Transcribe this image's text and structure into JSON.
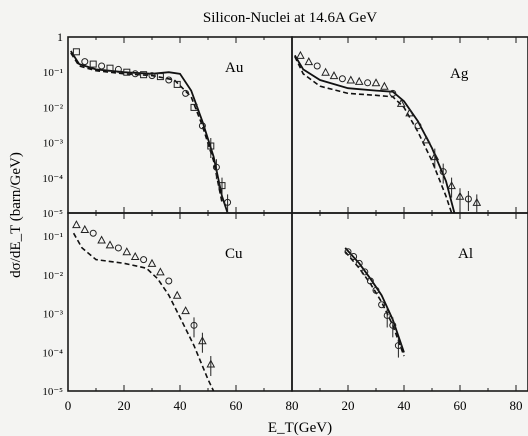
{
  "title": "Silicon-Nuclei at  14.6A GeV",
  "ylabel": "dσ/dE_T (barn/GeV)",
  "xlabel": "E_T(GeV)",
  "x_ticks_left": [
    "0",
    "20",
    "40",
    "60",
    "80"
  ],
  "x_ticks_right": [
    "20",
    "40",
    "60",
    "80"
  ],
  "y_ticks_top": [
    "1",
    "10⁻¹",
    "10⁻²",
    "10⁻³",
    "10⁻⁴",
    "10⁻⁵"
  ],
  "y_ticks_bottom": [
    "10⁻¹",
    "10⁻²",
    "10⁻³",
    "10⁻⁴",
    "10⁻⁵"
  ],
  "chart_data": [
    {
      "panel": "Au",
      "type": "scatter",
      "xlim": [
        0,
        80
      ],
      "ylim": [
        1e-05,
        1
      ],
      "yscale": "log",
      "markers": "squares and circles",
      "points": [
        [
          3,
          0.38
        ],
        [
          6,
          0.2
        ],
        [
          9,
          0.17
        ],
        [
          12,
          0.15
        ],
        [
          15,
          0.13
        ],
        [
          18,
          0.12
        ],
        [
          21,
          0.1
        ],
        [
          24,
          0.09
        ],
        [
          27,
          0.085
        ],
        [
          30,
          0.08
        ],
        [
          33,
          0.075
        ],
        [
          36,
          0.06
        ],
        [
          39,
          0.045
        ],
        [
          42,
          0.025
        ],
        [
          45,
          0.01
        ],
        [
          48,
          0.003
        ],
        [
          51,
          0.0008
        ],
        [
          53,
          0.0002
        ],
        [
          55,
          6e-05
        ],
        [
          57,
          2e-05
        ]
      ],
      "solid": [
        [
          1,
          0.4
        ],
        [
          4,
          0.17
        ],
        [
          10,
          0.12
        ],
        [
          20,
          0.1
        ],
        [
          30,
          0.09
        ],
        [
          36,
          0.1
        ],
        [
          40,
          0.09
        ],
        [
          44,
          0.03
        ],
        [
          48,
          0.004
        ],
        [
          52,
          0.0004
        ],
        [
          55,
          3e-05
        ],
        [
          57,
          1e-05
        ]
      ],
      "dashed": [
        [
          1,
          0.35
        ],
        [
          4,
          0.15
        ],
        [
          10,
          0.11
        ],
        [
          20,
          0.09
        ],
        [
          30,
          0.08
        ],
        [
          38,
          0.06
        ],
        [
          44,
          0.02
        ],
        [
          48,
          0.003
        ],
        [
          52,
          0.0003
        ],
        [
          55,
          2e-05
        ]
      ]
    },
    {
      "panel": "Ag",
      "type": "scatter",
      "xlim": [
        0,
        80
      ],
      "ylim": [
        1e-05,
        1
      ],
      "yscale": "log",
      "markers": "triangles and circles",
      "points": [
        [
          3,
          0.3
        ],
        [
          6,
          0.2
        ],
        [
          9,
          0.15
        ],
        [
          12,
          0.1
        ],
        [
          15,
          0.08
        ],
        [
          18,
          0.065
        ],
        [
          21,
          0.06
        ],
        [
          24,
          0.055
        ],
        [
          27,
          0.05
        ],
        [
          30,
          0.05
        ],
        [
          33,
          0.04
        ],
        [
          36,
          0.025
        ],
        [
          39,
          0.013
        ],
        [
          42,
          0.007
        ],
        [
          45,
          0.003
        ],
        [
          48,
          0.0012
        ],
        [
          51,
          0.0004
        ],
        [
          54,
          0.00015
        ],
        [
          57,
          6e-05
        ],
        [
          60,
          3e-05
        ],
        [
          63,
          2.5e-05
        ],
        [
          66,
          2e-05
        ]
      ],
      "solid": [
        [
          1,
          0.3
        ],
        [
          4,
          0.12
        ],
        [
          10,
          0.06
        ],
        [
          20,
          0.035
        ],
        [
          30,
          0.03
        ],
        [
          36,
          0.028
        ],
        [
          40,
          0.015
        ],
        [
          45,
          0.004
        ],
        [
          50,
          0.0007
        ],
        [
          55,
          8e-05
        ],
        [
          58,
          1e-05
        ]
      ],
      "dashed": [
        [
          1,
          0.28
        ],
        [
          4,
          0.09
        ],
        [
          10,
          0.04
        ],
        [
          20,
          0.025
        ],
        [
          30,
          0.022
        ],
        [
          36,
          0.02
        ],
        [
          40,
          0.01
        ],
        [
          45,
          0.002
        ],
        [
          50,
          0.0003
        ],
        [
          55,
          3e-05
        ],
        [
          57,
          1e-05
        ]
      ]
    },
    {
      "panel": "Cu",
      "type": "scatter",
      "xlim": [
        0,
        80
      ],
      "ylim": [
        1e-05,
        1
      ],
      "yscale": "log",
      "markers": "triangles",
      "points": [
        [
          3,
          0.2
        ],
        [
          6,
          0.15
        ],
        [
          9,
          0.12
        ],
        [
          12,
          0.08
        ],
        [
          15,
          0.06
        ],
        [
          18,
          0.05
        ],
        [
          21,
          0.04
        ],
        [
          24,
          0.03
        ],
        [
          27,
          0.025
        ],
        [
          30,
          0.02
        ],
        [
          33,
          0.012
        ],
        [
          36,
          0.007
        ],
        [
          39,
          0.003
        ],
        [
          42,
          0.0012
        ],
        [
          45,
          0.0005
        ],
        [
          48,
          0.0002
        ],
        [
          51,
          5e-05
        ]
      ],
      "dashed": [
        [
          2,
          0.12
        ],
        [
          5,
          0.05
        ],
        [
          10,
          0.025
        ],
        [
          20,
          0.02
        ],
        [
          28,
          0.015
        ],
        [
          32,
          0.008
        ],
        [
          36,
          0.003
        ],
        [
          40,
          0.0008
        ],
        [
          45,
          0.00015
        ],
        [
          50,
          2e-05
        ],
        [
          52,
          1e-05
        ]
      ]
    },
    {
      "panel": "Al",
      "type": "scatter",
      "xlim": [
        0,
        80
      ],
      "ylim": [
        1e-05,
        1
      ],
      "yscale": "log",
      "markers": "circles",
      "points": [
        [
          20,
          0.04
        ],
        [
          22,
          0.03
        ],
        [
          24,
          0.02
        ],
        [
          26,
          0.012
        ],
        [
          28,
          0.007
        ],
        [
          30,
          0.004
        ],
        [
          32,
          0.0017
        ],
        [
          34,
          0.0009
        ],
        [
          36,
          0.0005
        ],
        [
          38,
          0.00015
        ]
      ],
      "solid": [
        [
          19,
          0.05
        ],
        [
          24,
          0.02
        ],
        [
          28,
          0.008
        ],
        [
          32,
          0.003
        ],
        [
          36,
          0.0007
        ],
        [
          40,
          0.0001
        ]
      ],
      "dashed": [
        [
          19,
          0.04
        ],
        [
          24,
          0.015
        ],
        [
          28,
          0.006
        ],
        [
          32,
          0.002
        ],
        [
          36,
          0.0005
        ],
        [
          40,
          8e-05
        ]
      ]
    }
  ]
}
